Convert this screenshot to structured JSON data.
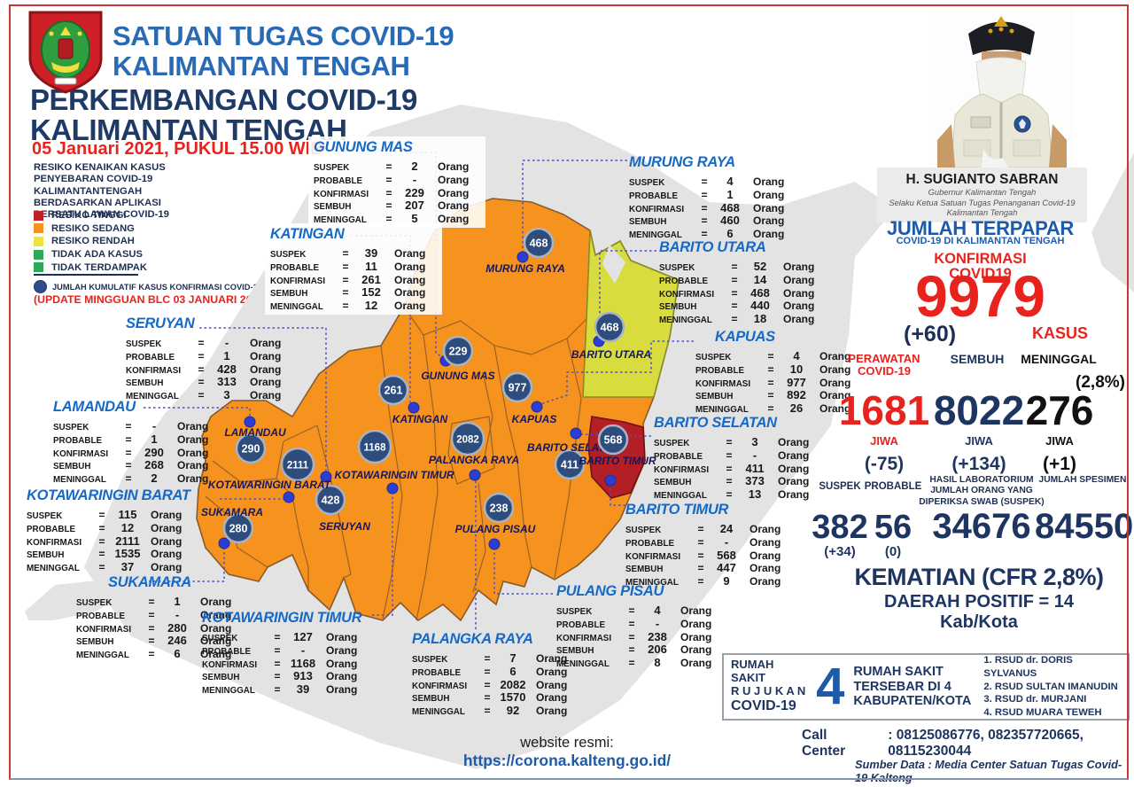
{
  "header": {
    "line1": "SATUAN TUGAS COVID-19",
    "line2": "KALIMANTAN TENGAH"
  },
  "main_title": {
    "line1": "PERKEMBANGAN COVID-19",
    "line2": "KALIMANTAN TENGAH"
  },
  "datetime": "05 Januari 2021, PUKUL 15.00 WIB",
  "legend": {
    "description": [
      "RESIKO KENAIKAN KASUS",
      "PENYEBARAN COVID-19",
      "KALIMANTANTENGAH",
      "BERDASARKAN APLIKASI",
      "BERSATU LAWAN COVID-19"
    ],
    "items": [
      {
        "label": "RESIKO TINGGI",
        "color": "#bf2026"
      },
      {
        "label": "RESIKO SEDANG",
        "color": "#f6921e"
      },
      {
        "label": "RESIKO RENDAH",
        "color": "#ece33b"
      },
      {
        "label": "TIDAK ADA KASUS",
        "color": "#2fa85a"
      },
      {
        "label": "TIDAK TERDAMPAK",
        "color": "#2fa85a"
      }
    ],
    "bubble_note": "JUMLAH KUMULATIF KASUS KONFIRMASI COVID-19",
    "update_note": "(UPDATE MINGGUAN BLC 03 JANUARI 2021)"
  },
  "row_labels": {
    "suspek": "SUSPEK",
    "probable": "PROBABLE",
    "konfirmasi": "KONFIRMASI",
    "sembuh": "SEMBUH",
    "meninggal": "MENINGGAL",
    "unit": "Orang",
    "equals": "="
  },
  "regions": [
    {
      "id": "gunung_mas",
      "name": "GUNUNG MAS",
      "risk": "sedang",
      "bubble": "229",
      "stats": {
        "suspek": "2",
        "probable": "-",
        "konfirmasi": "229",
        "sembuh": "207",
        "meninggal": "5"
      }
    },
    {
      "id": "katingan",
      "name": "KATINGAN",
      "risk": "sedang",
      "bubble": "261",
      "stats": {
        "suspek": "39",
        "probable": "11",
        "konfirmasi": "261",
        "sembuh": "152",
        "meninggal": "12"
      }
    },
    {
      "id": "murung_raya",
      "name": "MURUNG RAYA",
      "risk": "sedang",
      "bubble": "468",
      "stats": {
        "suspek": "4",
        "probable": "1",
        "konfirmasi": "468",
        "sembuh": "460",
        "meninggal": "6"
      }
    },
    {
      "id": "barito_utara",
      "name": "BARITO UTARA",
      "risk": "rendah",
      "bubble": "468",
      "stats": {
        "suspek": "52",
        "probable": "14",
        "konfirmasi": "468",
        "sembuh": "440",
        "meninggal": "18"
      }
    },
    {
      "id": "kapuas",
      "name": "KAPUAS",
      "risk": "sedang",
      "bubble": "977",
      "stats": {
        "suspek": "4",
        "probable": "10",
        "konfirmasi": "977",
        "sembuh": "892",
        "meninggal": "26"
      }
    },
    {
      "id": "barito_selatan",
      "name": "BARITO SELATAN",
      "risk": "sedang",
      "bubble": "411",
      "stats": {
        "suspek": "3",
        "probable": "-",
        "konfirmasi": "411",
        "sembuh": "373",
        "meninggal": "13"
      }
    },
    {
      "id": "barito_timur",
      "name": "BARITO TIMUR",
      "risk": "tinggi",
      "bubble": "568",
      "stats": {
        "suspek": "24",
        "probable": "-",
        "konfirmasi": "568",
        "sembuh": "447",
        "meninggal": "9"
      }
    },
    {
      "id": "seruyan",
      "name": "SERUYAN",
      "risk": "sedang",
      "bubble": "428",
      "stats": {
        "suspek": "-",
        "probable": "1",
        "konfirmasi": "428",
        "sembuh": "313",
        "meninggal": "3"
      }
    },
    {
      "id": "lamandau",
      "name": "LAMANDAU",
      "risk": "sedang",
      "bubble": "290",
      "stats": {
        "suspek": "-",
        "probable": "1",
        "konfirmasi": "290",
        "sembuh": "268",
        "meninggal": "2"
      }
    },
    {
      "id": "kotawaringin_barat",
      "name": "KOTAWARINGIN BARAT",
      "risk": "sedang",
      "bubble": "2111",
      "stats": {
        "suspek": "115",
        "probable": "12",
        "konfirmasi": "2111",
        "sembuh": "1535",
        "meninggal": "37"
      }
    },
    {
      "id": "sukamara",
      "name": "SUKAMARA",
      "risk": "sedang",
      "bubble": "280",
      "stats": {
        "suspek": "1",
        "probable": "-",
        "konfirmasi": "280",
        "sembuh": "246",
        "meninggal": "6"
      }
    },
    {
      "id": "kotawaringin_timur",
      "name": "KOTAWARINGIN TIMUR",
      "risk": "sedang",
      "bubble": "1168",
      "stats": {
        "suspek": "127",
        "probable": "-",
        "konfirmasi": "1168",
        "sembuh": "913",
        "meninggal": "39"
      }
    },
    {
      "id": "palangka_raya",
      "name": "PALANGKA RAYA",
      "risk": "sedang",
      "bubble": "2082",
      "stats": {
        "suspek": "7",
        "probable": "6",
        "konfirmasi": "2082",
        "sembuh": "1570",
        "meninggal": "92"
      }
    },
    {
      "id": "pulang_pisau",
      "name": "PULANG PISAU",
      "risk": "sedang",
      "bubble": "238",
      "stats": {
        "suspek": "4",
        "probable": "-",
        "konfirmasi": "238",
        "sembuh": "206",
        "meninggal": "8"
      }
    }
  ],
  "governor": {
    "name": "H. SUGIANTO SABRAN",
    "title1": "Gubernur Kalimantan Tengah",
    "title2": "Selaku Ketua Satuan Tugas Penanganan Covid-19",
    "title3": "Kalimantan Tengah"
  },
  "summary": {
    "jumlah_terpapar_title": "JUMLAH TERPAPAR",
    "jumlah_terpapar_sub": "COVID-19 DI KALIMANTAN TENGAH",
    "konfirmasi_label1": "KONFIRMASI",
    "konfirmasi_label2": "COVID19",
    "konfirmasi_value": "9979",
    "konfirmasi_delta": "(+60)",
    "kasus_label": "KASUS",
    "perawatan_label1": "PERAWATAN",
    "perawatan_label2": "COVID-19",
    "perawatan_value": "1681",
    "perawatan_unit": "JIWA",
    "perawatan_delta": "(-75)",
    "sembuh_label": "SEMBUH",
    "sembuh_value": "8022",
    "sembuh_unit": "JIWA",
    "sembuh_delta": "(+134)",
    "meninggal_label": "MENINGGAL",
    "meninggal_pct": "(2,8%)",
    "meninggal_value": "276",
    "meninggal_unit": "JIWA",
    "meninggal_delta": "(+1)",
    "suspek_label": "SUSPEK",
    "suspek_value": "382",
    "suspek_delta": "(+34)",
    "probable_label": "PROBABLE",
    "probable_value": "56",
    "probable_delta": "(0)",
    "lab_label1": "HASIL LABORATORIUM",
    "lab_label2": "JUMLAH ORANG YANG",
    "lab_label3": "DIPERIKSA SWAB (SUSPEK)",
    "lab_value": "34676",
    "spesimen_label": "JUMLAH SPESIMEN",
    "spesimen_value": "84550",
    "kematian_line": "KEMATIAN (CFR 2,8%)",
    "daerah_line": "DAERAH POSITIF = 14 Kab/Kota"
  },
  "hospitals": {
    "box_label1": "RUMAH SAKIT",
    "box_label2": "R U J U K A N",
    "box_label3": "COVID-19",
    "count": "4",
    "desc1": "RUMAH SAKIT",
    "desc2": "TERSEBAR DI 4",
    "desc3": "KABUPATEN/KOTA",
    "list": [
      "1. RSUD dr. DORIS SYLVANUS",
      "2. RSUD SULTAN IMANUDIN",
      "3. RSUD dr. MURJANI",
      "4. RSUD MUARA TEWEH"
    ]
  },
  "call_center": {
    "label": "Call Center",
    "numbers": ": 08125086776, 082357720665, 08115230044"
  },
  "website": {
    "label": "website resmi:",
    "url": "https://corona.kalteng.go.id/"
  },
  "source": "Sumber Data : Media Center Satuan Tugas Covid-19 Kalteng",
  "colors": {
    "risk_tinggi": "#b31f24",
    "risk_sedang": "#f6921e",
    "risk_rendah": "#d9dc3f",
    "bubble": "#2e4d7d",
    "dot": "#2b3ed1",
    "accent_blue": "#1d5aa8",
    "accent_red": "#e8231d",
    "navy": "#1d3560"
  }
}
